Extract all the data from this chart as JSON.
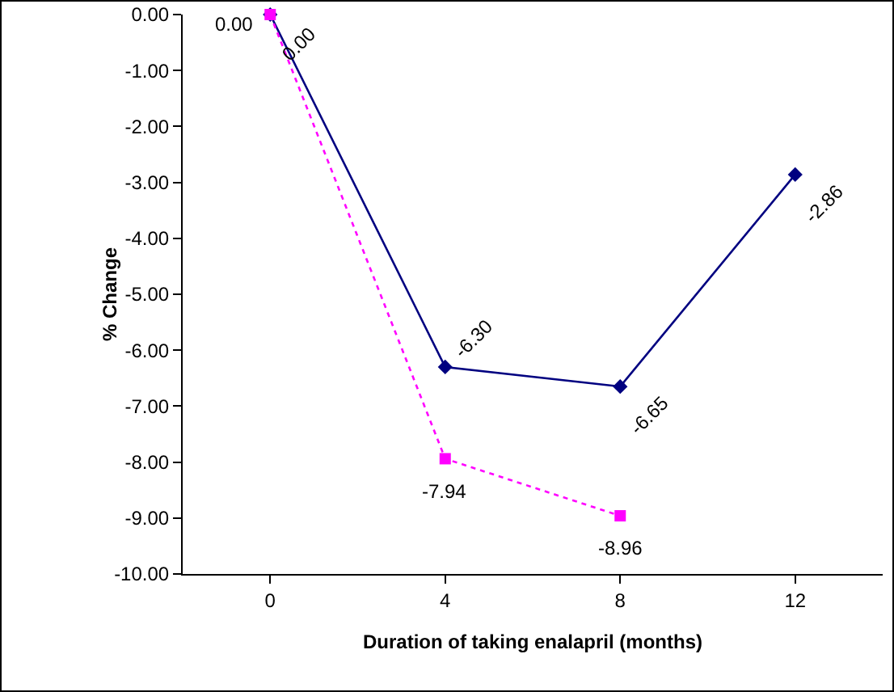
{
  "chart_data": {
    "type": "line",
    "xlabel": "Duration of taking enalapril (months)",
    "ylabel": "% Change",
    "categories": [
      "0",
      "4",
      "8",
      "12"
    ],
    "series": [
      {
        "color": "#000080",
        "marker": "diamond",
        "line_style": "solid",
        "values": [
          0,
          -6.3,
          -6.65,
          -2.86
        ],
        "value_labels": [
          "0.00",
          "-6.30",
          "-6.65",
          "-2.86"
        ]
      },
      {
        "color": "#ff00ff",
        "marker": "square",
        "line_style": "dotted",
        "values": [
          0,
          -7.94,
          -8.96,
          null
        ],
        "value_labels": [
          "0.00",
          "-7.94",
          "-8.96",
          null
        ]
      }
    ],
    "ylim": [
      -10,
      0
    ],
    "yticks": [
      {
        "value": 0,
        "label": "0.00"
      },
      {
        "value": -1,
        "label": "-1.00"
      },
      {
        "value": -2,
        "label": "-2.00"
      },
      {
        "value": -3,
        "label": "-3.00"
      },
      {
        "value": -4,
        "label": "-4.00"
      },
      {
        "value": -5,
        "label": "-5.00"
      },
      {
        "value": -6,
        "label": "-6.00"
      },
      {
        "value": -7,
        "label": "-7.00"
      },
      {
        "value": -8,
        "label": "-8.00"
      },
      {
        "value": -9,
        "label": "-9.00"
      },
      {
        "value": -10,
        "label": "-10.00"
      }
    ],
    "grid": false
  }
}
